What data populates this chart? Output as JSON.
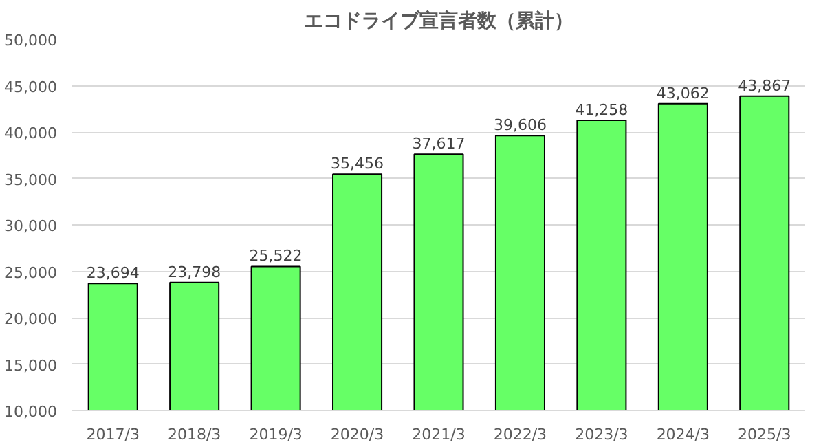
{
  "chart_data": {
    "type": "bar",
    "title": "エコドライブ宣言者数（累計）",
    "categories": [
      "2017/3",
      "2018/3",
      "2019/3",
      "2020/3",
      "2021/3",
      "2022/3",
      "2023/3",
      "2024/3",
      "2025/3"
    ],
    "values": [
      23694,
      23798,
      25522,
      35456,
      37617,
      39606,
      41258,
      43062,
      43867
    ],
    "value_labels": [
      "23,694",
      "23,798",
      "25,522",
      "35,456",
      "37,617",
      "39,606",
      "41,258",
      "43,062",
      "43,867"
    ],
    "color": "#66ff66",
    "ylim": [
      10000,
      50000
    ],
    "yticks": [
      {
        "value": 10000,
        "label": "10,000"
      },
      {
        "value": 15000,
        "label": "15,000"
      },
      {
        "value": 20000,
        "label": "20,000"
      },
      {
        "value": 25000,
        "label": "25,000"
      },
      {
        "value": 30000,
        "label": "30,000"
      },
      {
        "value": 35000,
        "label": "35,000"
      },
      {
        "value": 40000,
        "label": "40,000"
      },
      {
        "value": 45000,
        "label": "45,000"
      },
      {
        "value": 50000,
        "label": "50,000"
      }
    ],
    "grid": "y"
  }
}
